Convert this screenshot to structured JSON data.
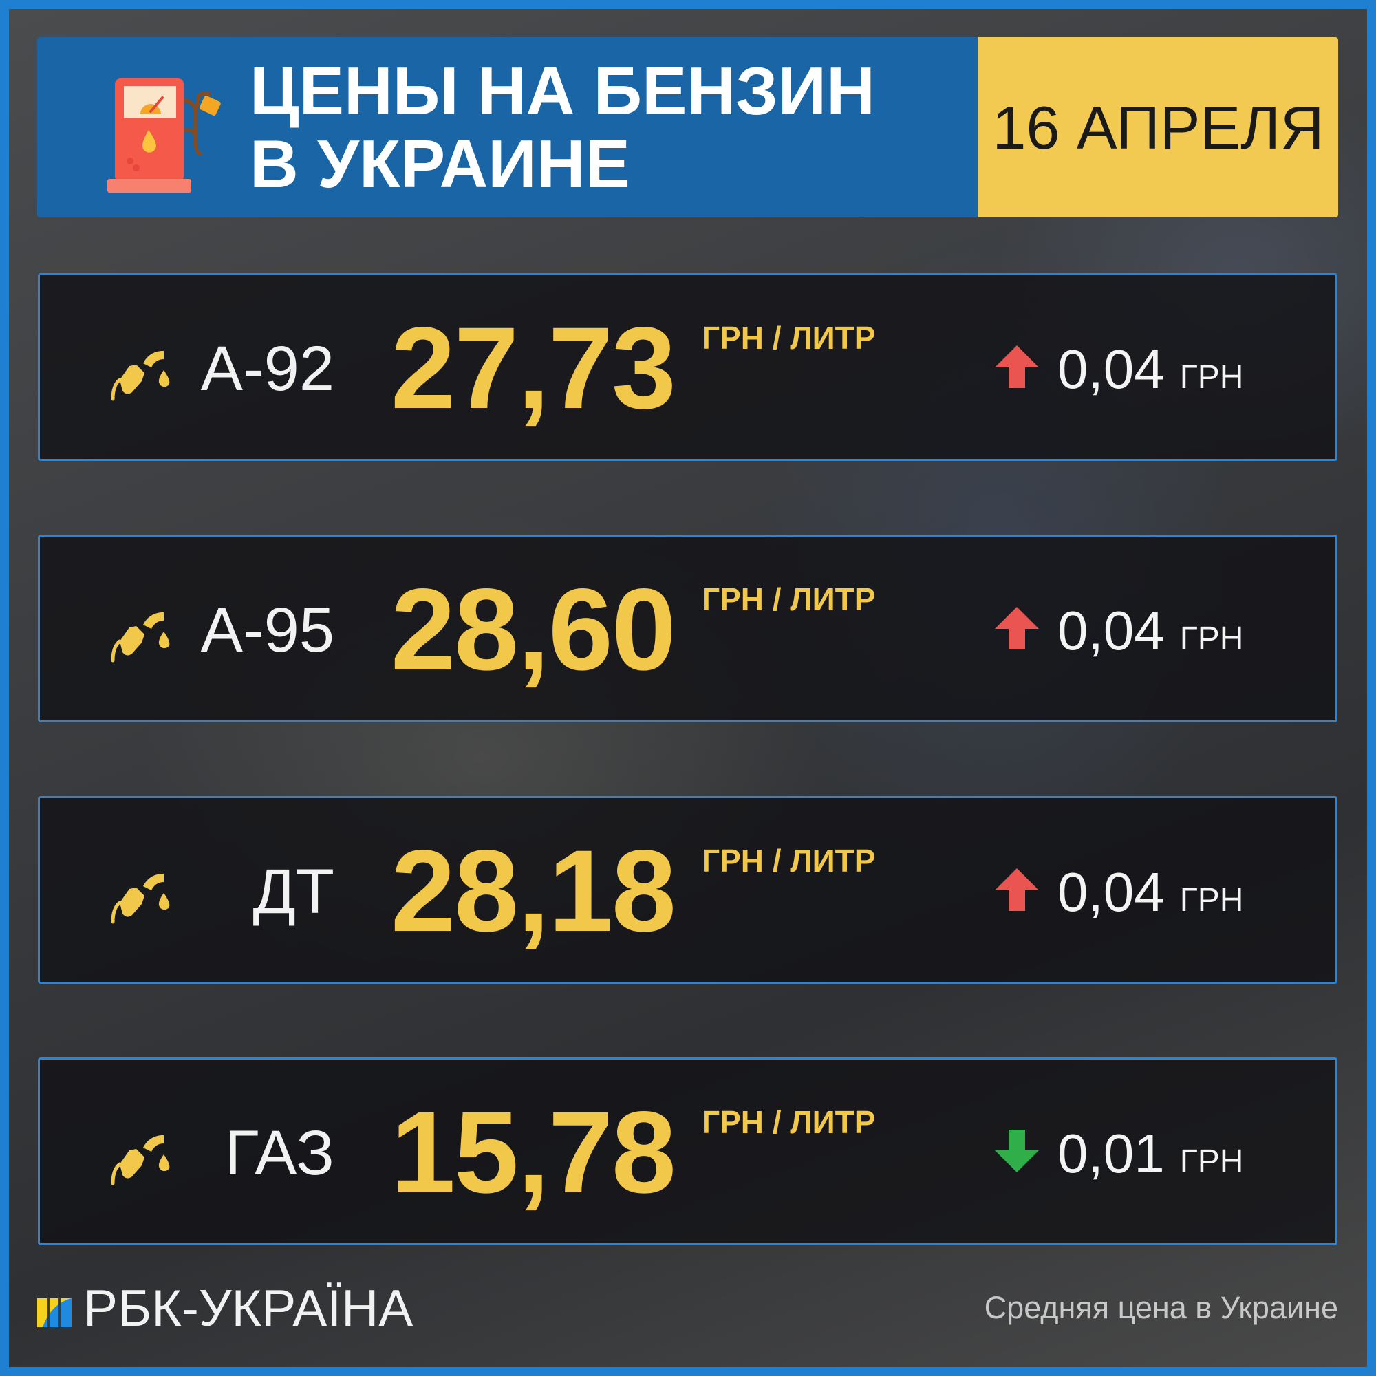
{
  "header": {
    "title_line1": "ЦЕНЫ НА БЕНЗИН",
    "title_line2": "В УКРАИНЕ",
    "date": "16 АПРЕЛЯ",
    "icon": "gas-pump-icon"
  },
  "colors": {
    "blue": "#1a65a6",
    "yellow": "#f2ca52",
    "price": "#f2c84b",
    "up": "#ea5451",
    "down": "#2fae4a",
    "border": "#2a84d8"
  },
  "rows": [
    {
      "fuel": "А-92",
      "price": "27,73",
      "unit": "ГРН / ЛИТР",
      "direction": "up",
      "change": "0,04",
      "currency": "ГРН"
    },
    {
      "fuel": "А-95",
      "price": "28,60",
      "unit": "ГРН / ЛИТР",
      "direction": "up",
      "change": "0,04",
      "currency": "ГРН"
    },
    {
      "fuel": "ДТ",
      "price": "28,18",
      "unit": "ГРН / ЛИТР",
      "direction": "up",
      "change": "0,04",
      "currency": "ГРН"
    },
    {
      "fuel": "ГАЗ",
      "price": "15,78",
      "unit": "ГРН / ЛИТР",
      "direction": "down",
      "change": "0,01",
      "currency": "ГРН"
    }
  ],
  "footer": {
    "brand": "РБК-УКРАЇНА",
    "note": "Средняя цена в Украине"
  }
}
